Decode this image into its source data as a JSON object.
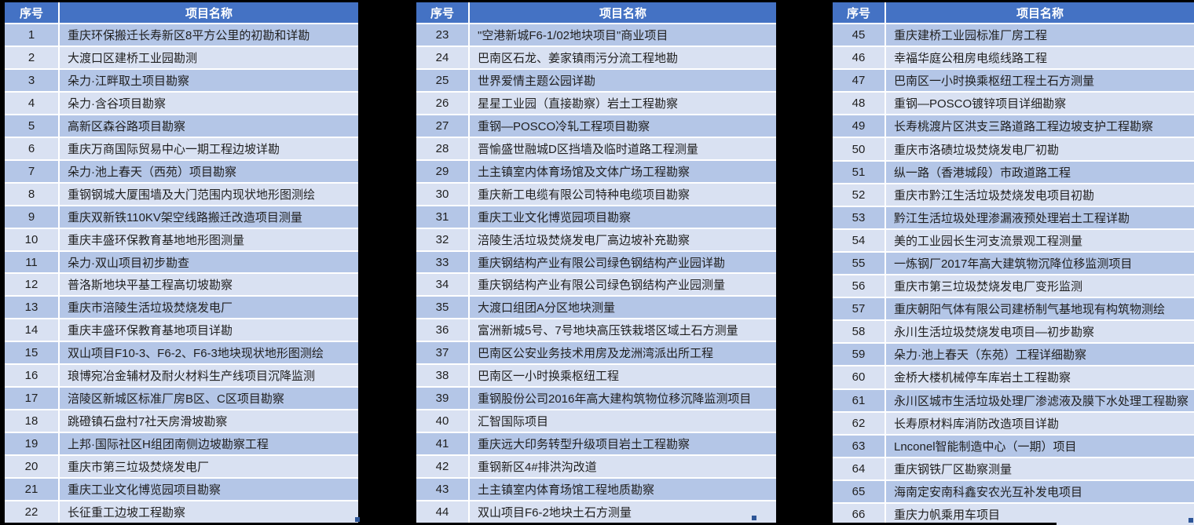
{
  "app": {
    "description_title": "项目名称列表",
    "header_labels": {
      "index": "序号",
      "name": "项目名称"
    }
  },
  "colors": {
    "header_fill": "#4472c4",
    "header_text": "#ffffff",
    "row_odd_fill": "#b4c6e7",
    "row_even_fill": "#d9e1f2",
    "cell_text": "#1f1f1f",
    "gridline": "#ffffff",
    "separator": "#000000",
    "fill_handle": "#2d5597"
  },
  "groups": [
    {
      "rows": [
        {
          "no": "1",
          "name": "重庆环保搬迁长寿新区8平方公里的初勘和详勘"
        },
        {
          "no": "2",
          "name": "大渡口区建桥工业园勘测"
        },
        {
          "no": "3",
          "name": "朵力·江畔取土项目勘察"
        },
        {
          "no": "4",
          "name": "朵力·含谷项目勘察"
        },
        {
          "no": "5",
          "name": "高新区森谷路项目勘察"
        },
        {
          "no": "6",
          "name": "重庆万商国际贸易中心一期工程边坡详勘"
        },
        {
          "no": "7",
          "name": "朵力·池上春天（西苑）项目勘察"
        },
        {
          "no": "8",
          "name": "重钢钢城大厦围墙及大门范围内现状地形图测绘"
        },
        {
          "no": "9",
          "name": "重庆双新铁110KV架空线路搬迁改造项目测量"
        },
        {
          "no": "10",
          "name": "重庆丰盛环保教育基地地形图测量"
        },
        {
          "no": "11",
          "name": "朵力·双山项目初步勘查"
        },
        {
          "no": "12",
          "name": "普洛斯地块平基工程高切坡勘察"
        },
        {
          "no": "13",
          "name": "重庆市涪陵生活垃圾焚烧发电厂"
        },
        {
          "no": "14",
          "name": "重庆丰盛环保教育基地项目详勘"
        },
        {
          "no": "15",
          "name": "双山项目F10-3、F6-2、F6-3地块现状地形图测绘"
        },
        {
          "no": "16",
          "name": "琅博宛冶金辅材及耐火材料生产线项目沉降监测"
        },
        {
          "no": "17",
          "name": "涪陵区新城区标准厂房B区、C区项目勘察"
        },
        {
          "no": "18",
          "name": "跳磴镇石盘村7社天房滑坡勘察"
        },
        {
          "no": "19",
          "name": "上邦·国际社区H组团南侧边坡勘察工程"
        },
        {
          "no": "20",
          "name": "重庆市第三垃圾焚烧发电厂"
        },
        {
          "no": "21",
          "name": "重庆工业文化博览园项目勘察"
        },
        {
          "no": "22",
          "name": "长征重工边坡工程勘察"
        }
      ]
    },
    {
      "rows": [
        {
          "no": "23",
          "name": "\"空港新城F6-1/02地块项目\"商业项目"
        },
        {
          "no": "24",
          "name": "巴南区石龙、姜家镇雨污分流工程地勘"
        },
        {
          "no": "25",
          "name": "世界爱情主题公园详勘"
        },
        {
          "no": "26",
          "name": "星星工业园（直接勘察）岩土工程勘察"
        },
        {
          "no": "27",
          "name": "重钢—POSCO冷轧工程项目勘察"
        },
        {
          "no": "28",
          "name": "晋愉盛世融城D区挡墙及临时道路工程测量"
        },
        {
          "no": "29",
          "name": "土主镇室内体育场馆及文体广场工程勘察"
        },
        {
          "no": "30",
          "name": "重庆新工电缆有限公司特种电缆项目勘察"
        },
        {
          "no": "31",
          "name": "重庆工业文化博览园项目勘察"
        },
        {
          "no": "32",
          "name": "涪陵生活垃圾焚烧发电厂高边坡补充勘察"
        },
        {
          "no": "33",
          "name": "重庆钢结构产业有限公司绿色钢结构产业园详勘"
        },
        {
          "no": "34",
          "name": "重庆钢结构产业有限公司绿色钢结构产业园测量"
        },
        {
          "no": "35",
          "name": "大渡口组团A分区地块测量"
        },
        {
          "no": "36",
          "name": "富洲新城5号、7号地块高压铁栽塔区域土石方测量"
        },
        {
          "no": "37",
          "name": "巴南区公安业务技术用房及龙洲湾派出所工程"
        },
        {
          "no": "38",
          "name": "巴南区一小时换乘枢纽工程"
        },
        {
          "no": "39",
          "name": "重钢股份公司2016年高大建构筑物位移沉降监测项目"
        },
        {
          "no": "40",
          "name": "汇智国际项目"
        },
        {
          "no": "41",
          "name": "重庆远大印务转型升级项目岩土工程勘察"
        },
        {
          "no": "42",
          "name": "重钢新区4#排洪沟改道"
        },
        {
          "no": "43",
          "name": "土主镇室内体育场馆工程地质勘察"
        },
        {
          "no": "44",
          "name": "双山项目F6-2地块土石方测量"
        }
      ]
    },
    {
      "rows": [
        {
          "no": "45",
          "name": "重庆建桥工业园标准厂房工程"
        },
        {
          "no": "46",
          "name": "幸福华庭公租房电缆线路工程"
        },
        {
          "no": "47",
          "name": "巴南区一小时换乘枢纽工程土石方测量"
        },
        {
          "no": "48",
          "name": "重钢—POSCO镀锌项目详细勘察"
        },
        {
          "no": "49",
          "name": "长寿桃渡片区洪支三路道路工程边坡支护工程勘察"
        },
        {
          "no": "50",
          "name": "重庆市洛碛垃圾焚烧发电厂初勘"
        },
        {
          "no": "51",
          "name": "纵一路（香港城段）市政道路工程"
        },
        {
          "no": "52",
          "name": "重庆市黔江生活垃圾焚烧发电项目初勘"
        },
        {
          "no": "53",
          "name": "黔江生活垃圾处理渗漏液预处理岩土工程详勘"
        },
        {
          "no": "54",
          "name": "美的工业园长生河支流景观工程测量"
        },
        {
          "no": "55",
          "name": "一炼钢厂2017年高大建筑物沉降位移监测项目"
        },
        {
          "no": "56",
          "name": "重庆市第三垃圾焚烧发电厂变形监测"
        },
        {
          "no": "57",
          "name": "重庆朝阳气体有限公司建桥制气基地现有构筑物测绘"
        },
        {
          "no": "58",
          "name": "永川生活垃圾焚烧发电项目—初步勘察"
        },
        {
          "no": "59",
          "name": "朵力·池上春天（东苑）工程详细勘察"
        },
        {
          "no": "60",
          "name": "金桥大楼机械停车库岩土工程勘察"
        },
        {
          "no": "61",
          "name": "永川区城市生活垃圾处理厂渗滤液及膜下水处理工程勘察"
        },
        {
          "no": "62",
          "name": "长寿原材料库消防改造项目详勘"
        },
        {
          "no": "63",
          "name": "Lnconel智能制造中心（一期）项目"
        },
        {
          "no": "64",
          "name": "重庆钢铁厂区勘察测量"
        },
        {
          "no": "65",
          "name": "海南定安南科鑫安农光互补发电项目"
        },
        {
          "no": "66",
          "name": "重庆力帆乘用车项目"
        }
      ]
    }
  ]
}
